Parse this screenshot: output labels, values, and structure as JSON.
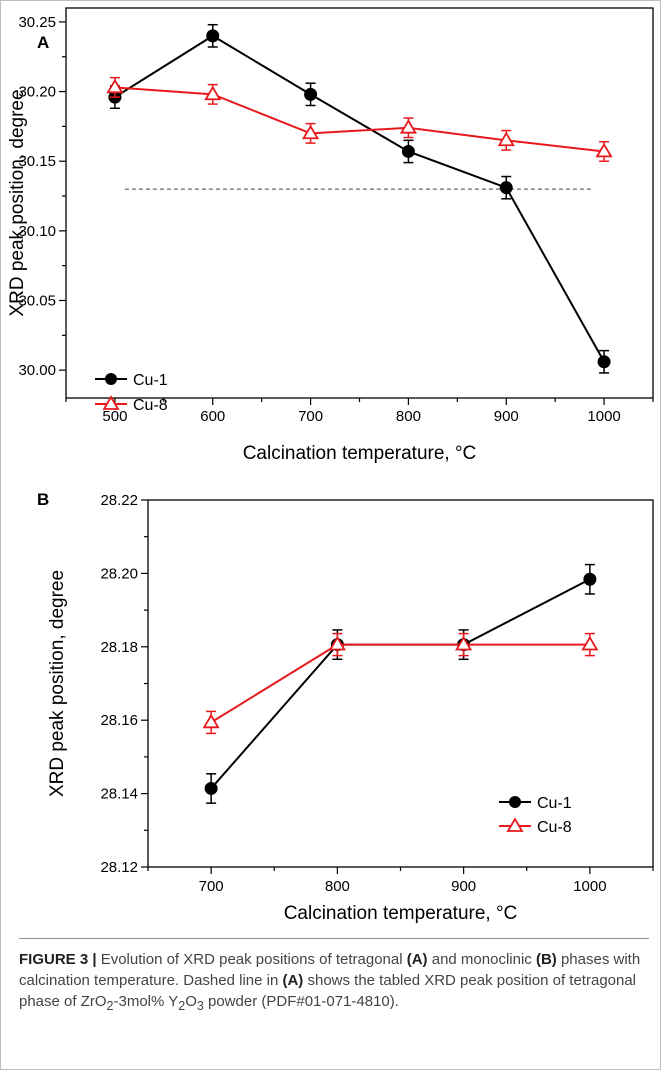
{
  "chart_data": [
    {
      "panel_label": "A",
      "type": "line",
      "xlabel": "Calcination temperature, °C",
      "ylabel": "XRD peak position, degree",
      "xlim": [
        450,
        1050
      ],
      "ylim": [
        29.98,
        30.26
      ],
      "xticks": [
        500,
        600,
        700,
        800,
        900,
        1000
      ],
      "yticks": [
        30.0,
        30.05,
        30.1,
        30.15,
        30.2,
        30.25
      ],
      "y_decimals": 2,
      "grid": false,
      "legend_position": "bottom-left",
      "reference_line": {
        "y": 30.13,
        "x_range": [
          500,
          1000
        ],
        "style": "dashed"
      },
      "series": [
        {
          "name": "Cu-1",
          "marker": "filled-circle",
          "color": "#000000",
          "x": [
            500,
            600,
            700,
            800,
            900,
            1000
          ],
          "y": [
            30.196,
            30.24,
            30.198,
            30.157,
            30.131,
            30.006
          ],
          "error": [
            0.008,
            0.008,
            0.008,
            0.008,
            0.008,
            0.008
          ]
        },
        {
          "name": "Cu-8",
          "marker": "open-triangle",
          "color": "#e8191c",
          "x": [
            500,
            600,
            700,
            800,
            900,
            1000
          ],
          "y": [
            30.203,
            30.198,
            30.17,
            30.174,
            30.165,
            30.157
          ],
          "error": [
            0.007,
            0.007,
            0.007,
            0.007,
            0.007,
            0.007
          ]
        }
      ]
    },
    {
      "panel_label": "B",
      "type": "line",
      "xlabel": "Calcination temperature, °C",
      "ylabel": "XRD peak position, degree",
      "xlim": [
        650,
        1050
      ],
      "ylim": [
        28.12,
        28.22
      ],
      "xticks": [
        700,
        800,
        900,
        1000
      ],
      "yticks": [
        28.12,
        28.14,
        28.16,
        28.18,
        28.2,
        28.22
      ],
      "y_decimals": 2,
      "grid": false,
      "legend_position": "bottom-right",
      "series": [
        {
          "name": "Cu-1",
          "marker": "filled-circle",
          "color": "#000000",
          "x": [
            700,
            800,
            900,
            1000
          ],
          "y": [
            28.1414,
            28.1806,
            28.1806,
            28.1984
          ],
          "error": [
            0.004,
            0.004,
            0.004,
            0.004
          ]
        },
        {
          "name": "Cu-8",
          "marker": "open-triangle",
          "color": "#e8191c",
          "x": [
            700,
            800,
            900,
            1000
          ],
          "y": [
            28.1594,
            28.1806,
            28.1806,
            28.1806
          ],
          "error": [
            0.003,
            0.003,
            0.003,
            0.003
          ]
        }
      ]
    }
  ],
  "caption": {
    "figure_label": "FIGURE 3 |",
    "text_1": " Evolution of XRD peak positions of tetragonal ",
    "ref_a1": "(A)",
    "text_2": " and monoclinic ",
    "ref_b": "(B)",
    "text_3": " phases with calcination temperature. Dashed line in ",
    "ref_a2": "(A)",
    "text_4": " shows the tabled XRD peak position of tetragonal phase of ZrO",
    "sub_1": "2",
    "text_5": "-3mol% Y",
    "sub_2": "2",
    "text_6": "O",
    "sub_3": "3",
    "text_7": " powder (PDF#01-071-4810)."
  }
}
